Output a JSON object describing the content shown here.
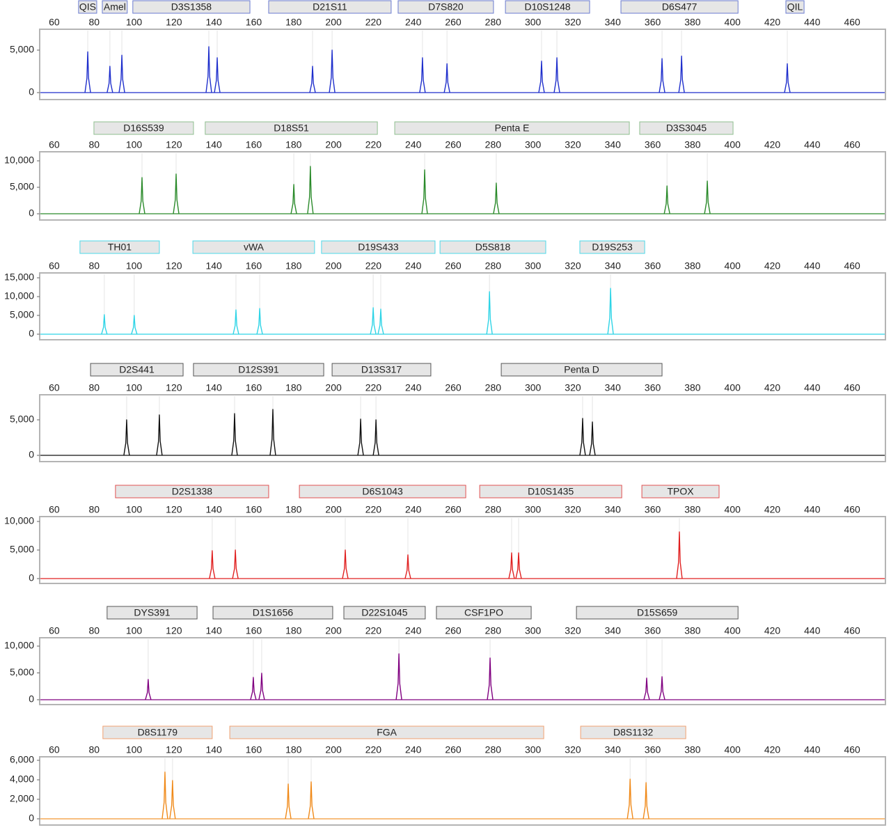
{
  "chart_data": [
    {
      "type": "electropherogram",
      "color": "#1f2fcc",
      "locus_color": "#6a7bd0",
      "loci": [
        {
          "name": "QIS",
          "start": 72.2,
          "end": 81.3
        },
        {
          "name": "Amel",
          "start": 84.1,
          "end": 96.6
        },
        {
          "name": "D3S1358",
          "start": 99.4,
          "end": 158.1
        },
        {
          "name": "D21S11",
          "start": 167.5,
          "end": 228.9
        },
        {
          "name": "D7S820",
          "start": 232.4,
          "end": 280.2
        },
        {
          "name": "D10S1248",
          "start": 286.2,
          "end": 328.4
        },
        {
          "name": "D6S477",
          "start": 344.1,
          "end": 402.8
        },
        {
          "name": "QIL",
          "start": 426.8,
          "end": 435.9
        }
      ],
      "x": [
        76.8,
        87.9,
        93.9,
        137.5,
        141.7,
        189.5,
        199.3,
        244.6,
        256.9,
        304.3,
        312.0,
        364.7,
        374.5,
        427.5
      ],
      "values": [
        4800,
        3100,
        4400,
        5400,
        4100,
        3100,
        5000,
        4100,
        3400,
        3700,
        4100,
        4000,
        4300,
        3400
      ],
      "xlim": [
        52.7,
        476.7
      ],
      "xticks": [
        60,
        80,
        100,
        120,
        140,
        160,
        180,
        200,
        220,
        240,
        260,
        280,
        300,
        320,
        340,
        360,
        380,
        400,
        420,
        440,
        460
      ],
      "ylim": [
        -820,
        7460
      ],
      "yticks": [
        0,
        {
          "value": 5000,
          "label": "5,000"
        }
      ]
    },
    {
      "type": "electropherogram",
      "color": "#2a8a2a",
      "locus_color": "#8fbf8f",
      "loci": [
        {
          "name": "D16S539",
          "start": 79.9,
          "end": 129.8
        },
        {
          "name": "D18S51",
          "start": 135.7,
          "end": 222.0
        },
        {
          "name": "Penta E",
          "start": 230.7,
          "end": 348.3
        },
        {
          "name": "D3S3045",
          "start": 353.5,
          "end": 400.3
        }
      ],
      "x": [
        104.0,
        121.1,
        180.1,
        188.4,
        245.7,
        281.6,
        367.2,
        387.4
      ],
      "values": [
        6840,
        7500,
        5530,
        8950,
        8290,
        5790,
        5260,
        6180
      ],
      "xlim": [
        52.7,
        476.7
      ],
      "xticks": [
        60,
        80,
        100,
        120,
        140,
        160,
        180,
        200,
        220,
        240,
        260,
        280,
        300,
        320,
        340,
        360,
        380,
        400,
        420,
        440,
        460
      ],
      "ylim": [
        -1180,
        11710
      ],
      "yticks": [
        0,
        {
          "value": 5000,
          "label": "5,000"
        },
        {
          "value": 10000,
          "label": "10,000"
        }
      ]
    },
    {
      "type": "electropherogram",
      "color": "#2fd4e6",
      "locus_color": "#4dd8e8",
      "loci": [
        {
          "name": "TH01",
          "start": 72.9,
          "end": 112.7
        },
        {
          "name": "vWA",
          "start": 129.5,
          "end": 190.5
        },
        {
          "name": "D19S433",
          "start": 194.0,
          "end": 250.9
        },
        {
          "name": "D5S818",
          "start": 253.4,
          "end": 306.4
        },
        {
          "name": "D19S253",
          "start": 323.5,
          "end": 356.0
        }
      ],
      "x": [
        85.1,
        100.1,
        151.1,
        163.0,
        219.9,
        223.7,
        278.2,
        338.9
      ],
      "values": [
        5190,
        5000,
        6480,
        6850,
        7040,
        6670,
        11300,
        12200
      ],
      "xlim": [
        52.7,
        476.7
      ],
      "xticks": [
        60,
        80,
        100,
        120,
        140,
        160,
        180,
        200,
        220,
        240,
        260,
        280,
        300,
        320,
        340,
        360,
        380,
        400,
        420,
        440,
        460
      ],
      "ylim": [
        -1480,
        16300
      ],
      "yticks": [
        0,
        {
          "value": 5000,
          "label": "5,000"
        },
        {
          "value": 10000,
          "label": "10,000"
        },
        {
          "value": 15000,
          "label": "15,000"
        }
      ]
    },
    {
      "type": "electropherogram",
      "color": "#111111",
      "locus_color": "#555555",
      "loci": [
        {
          "name": "D2S441",
          "start": 78.2,
          "end": 124.6
        },
        {
          "name": "D12S391",
          "start": 129.8,
          "end": 195.1
        },
        {
          "name": "D13S317",
          "start": 199.3,
          "end": 248.8
        },
        {
          "name": "Penta D",
          "start": 284.1,
          "end": 364.7
        }
      ],
      "x": [
        96.3,
        112.7,
        150.4,
        169.6,
        213.6,
        221.3,
        324.9,
        329.8
      ],
      "values": [
        5000,
        5690,
        5880,
        6470,
        5100,
        5000,
        5200,
        4700
      ],
      "xlim": [
        52.7,
        476.7
      ],
      "xticks": [
        60,
        80,
        100,
        120,
        140,
        160,
        180,
        200,
        220,
        240,
        260,
        280,
        300,
        320,
        340,
        360,
        380,
        400,
        420,
        440,
        460
      ],
      "ylim": [
        -880,
        8530
      ],
      "yticks": [
        0,
        {
          "value": 5000,
          "label": "5,000"
        }
      ]
    },
    {
      "type": "electropherogram",
      "color": "#e02020",
      "locus_color": "#e05050",
      "loci": [
        {
          "name": "D2S1338",
          "start": 90.7,
          "end": 167.5
        },
        {
          "name": "D6S1043",
          "start": 182.9,
          "end": 266.3
        },
        {
          "name": "D10S1435",
          "start": 273.3,
          "end": 344.5
        },
        {
          "name": "TPOX",
          "start": 354.6,
          "end": 393.3
        }
      ],
      "x": [
        139.2,
        150.8,
        205.9,
        237.3,
        289.3,
        292.8,
        373.4
      ],
      "values": [
        4880,
        5000,
        5000,
        4150,
        4510,
        4510,
        8170
      ],
      "xlim": [
        52.7,
        476.7
      ],
      "xticks": [
        60,
        80,
        100,
        120,
        140,
        160,
        180,
        200,
        220,
        240,
        260,
        280,
        300,
        320,
        340,
        360,
        380,
        400,
        420,
        440,
        460
      ],
      "ylim": [
        -850,
        10850
      ],
      "yticks": [
        0,
        {
          "value": 5000,
          "label": "5,000"
        },
        {
          "value": 10000,
          "label": "10,000"
        }
      ]
    },
    {
      "type": "electropherogram",
      "color": "#800080",
      "locus_color": "#555555",
      "loci": [
        {
          "name": "DYS391",
          "start": 86.5,
          "end": 131.6
        },
        {
          "name": "D1S1656",
          "start": 139.6,
          "end": 199.6
        },
        {
          "name": "D22S1045",
          "start": 205.2,
          "end": 246.0
        },
        {
          "name": "CSF1PO",
          "start": 251.6,
          "end": 299.1
        },
        {
          "name": "D15S659",
          "start": 321.8,
          "end": 402.8
        }
      ],
      "x": [
        107.1,
        159.8,
        164.0,
        232.8,
        278.5,
        357.0,
        364.7
      ],
      "values": [
        3770,
        4160,
        4940,
        8570,
        7790,
        4030,
        4290
      ],
      "xlim": [
        52.7,
        476.7
      ],
      "xticks": [
        60,
        80,
        100,
        120,
        140,
        160,
        180,
        200,
        220,
        240,
        260,
        280,
        300,
        320,
        340,
        360,
        380,
        400,
        420,
        440,
        460
      ],
      "ylim": [
        -910,
        11560
      ],
      "yticks": [
        0,
        {
          "value": 5000,
          "label": "5,000"
        },
        {
          "value": 10000,
          "label": "10,000"
        }
      ]
    },
    {
      "type": "electropherogram",
      "color": "#f08a1a",
      "locus_color": "#f0a070",
      "loci": [
        {
          "name": "D8S1179",
          "start": 84.4,
          "end": 139.2
        },
        {
          "name": "FGA",
          "start": 148.0,
          "end": 305.4
        },
        {
          "name": "D8S1132",
          "start": 323.9,
          "end": 376.6
        }
      ],
      "x": [
        115.5,
        119.3,
        177.3,
        188.8,
        348.7,
        356.7
      ],
      "values": [
        4790,
        3930,
        3570,
        3790,
        4070,
        3710
      ],
      "xlim": [
        52.7,
        476.7
      ],
      "xticks": [
        60,
        80,
        100,
        120,
        140,
        160,
        180,
        200,
        220,
        240,
        260,
        280,
        300,
        320,
        340,
        360,
        380,
        400,
        420,
        440,
        460
      ],
      "ylim": [
        -640,
        6360
      ],
      "yticks": [
        0,
        {
          "value": 2000,
          "label": "2,000"
        },
        {
          "value": 4000,
          "label": "4,000"
        },
        {
          "value": 6000,
          "label": "6,000"
        }
      ]
    }
  ]
}
